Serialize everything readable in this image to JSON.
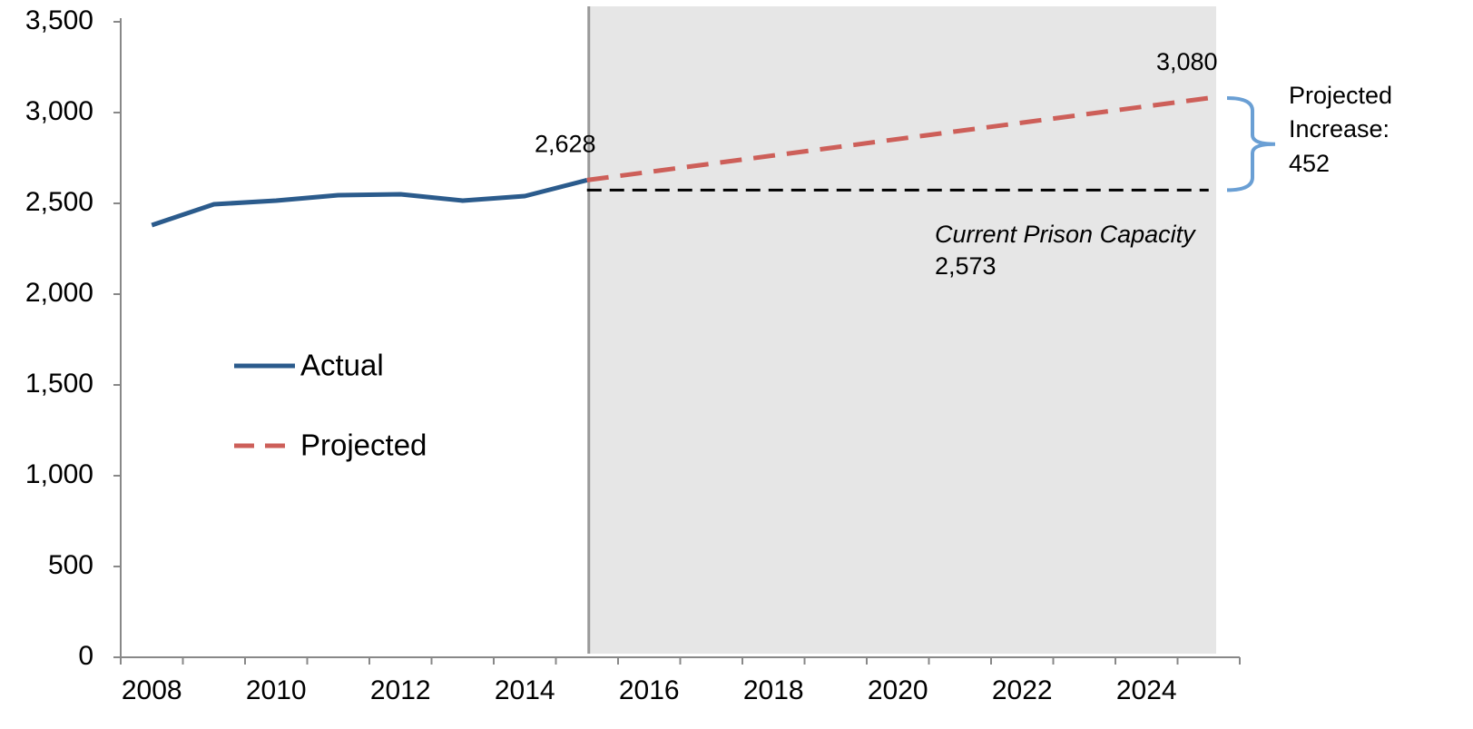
{
  "chart_data": {
    "type": "line",
    "categories": [
      "2008",
      null,
      "2010",
      null,
      "2012",
      null,
      "2014",
      null,
      "2016",
      null,
      "2018",
      null,
      "2020",
      null,
      "2022",
      null,
      "2024",
      null
    ],
    "series": [
      {
        "name": "Actual",
        "color": "#2b5b8c",
        "values": [
          2380,
          2495,
          2515,
          2545,
          2550,
          2515,
          2540,
          2628,
          null,
          null,
          null,
          null,
          null,
          null,
          null,
          null,
          null,
          null
        ],
        "value_labels": [
          null,
          null,
          null,
          null,
          null,
          null,
          null,
          "2,628",
          null,
          null,
          null,
          null,
          null,
          null,
          null,
          null,
          null,
          null
        ]
      },
      {
        "name": "Projected",
        "color": "#cd5f59",
        "dashed": true,
        "values": [
          null,
          null,
          null,
          null,
          null,
          null,
          null,
          2628,
          2673.2,
          2718.4,
          2763.6,
          2808.8,
          2854,
          2899.2,
          2944.4,
          2989.6,
          3034.8,
          3080
        ],
        "value_labels": [
          null,
          null,
          null,
          null,
          null,
          null,
          null,
          null,
          null,
          null,
          null,
          null,
          null,
          null,
          null,
          null,
          null,
          "3,080"
        ]
      }
    ],
    "ylim": [
      0,
      3500
    ],
    "yticks": [
      0,
      {
        "value": 500,
        "label": "500"
      },
      {
        "value": 1000,
        "label": "1,000"
      },
      {
        "value": 1500,
        "label": "1,500"
      },
      {
        "value": 2000,
        "label": "2,000"
      },
      {
        "value": 2500,
        "label": "2,500"
      },
      {
        "value": 3000,
        "label": "3,000"
      },
      {
        "value": 3500,
        "label": "3,500"
      }
    ],
    "grid": false,
    "legend": "left",
    "reference_line": {
      "label": "Current Prison Capacity",
      "value": 2573,
      "value_label": "2,573",
      "color": "#000000"
    },
    "projected_increase": {
      "label_lines": [
        "Projected",
        "Increase:"
      ],
      "value": 452,
      "color": "#6a9fd4"
    }
  }
}
